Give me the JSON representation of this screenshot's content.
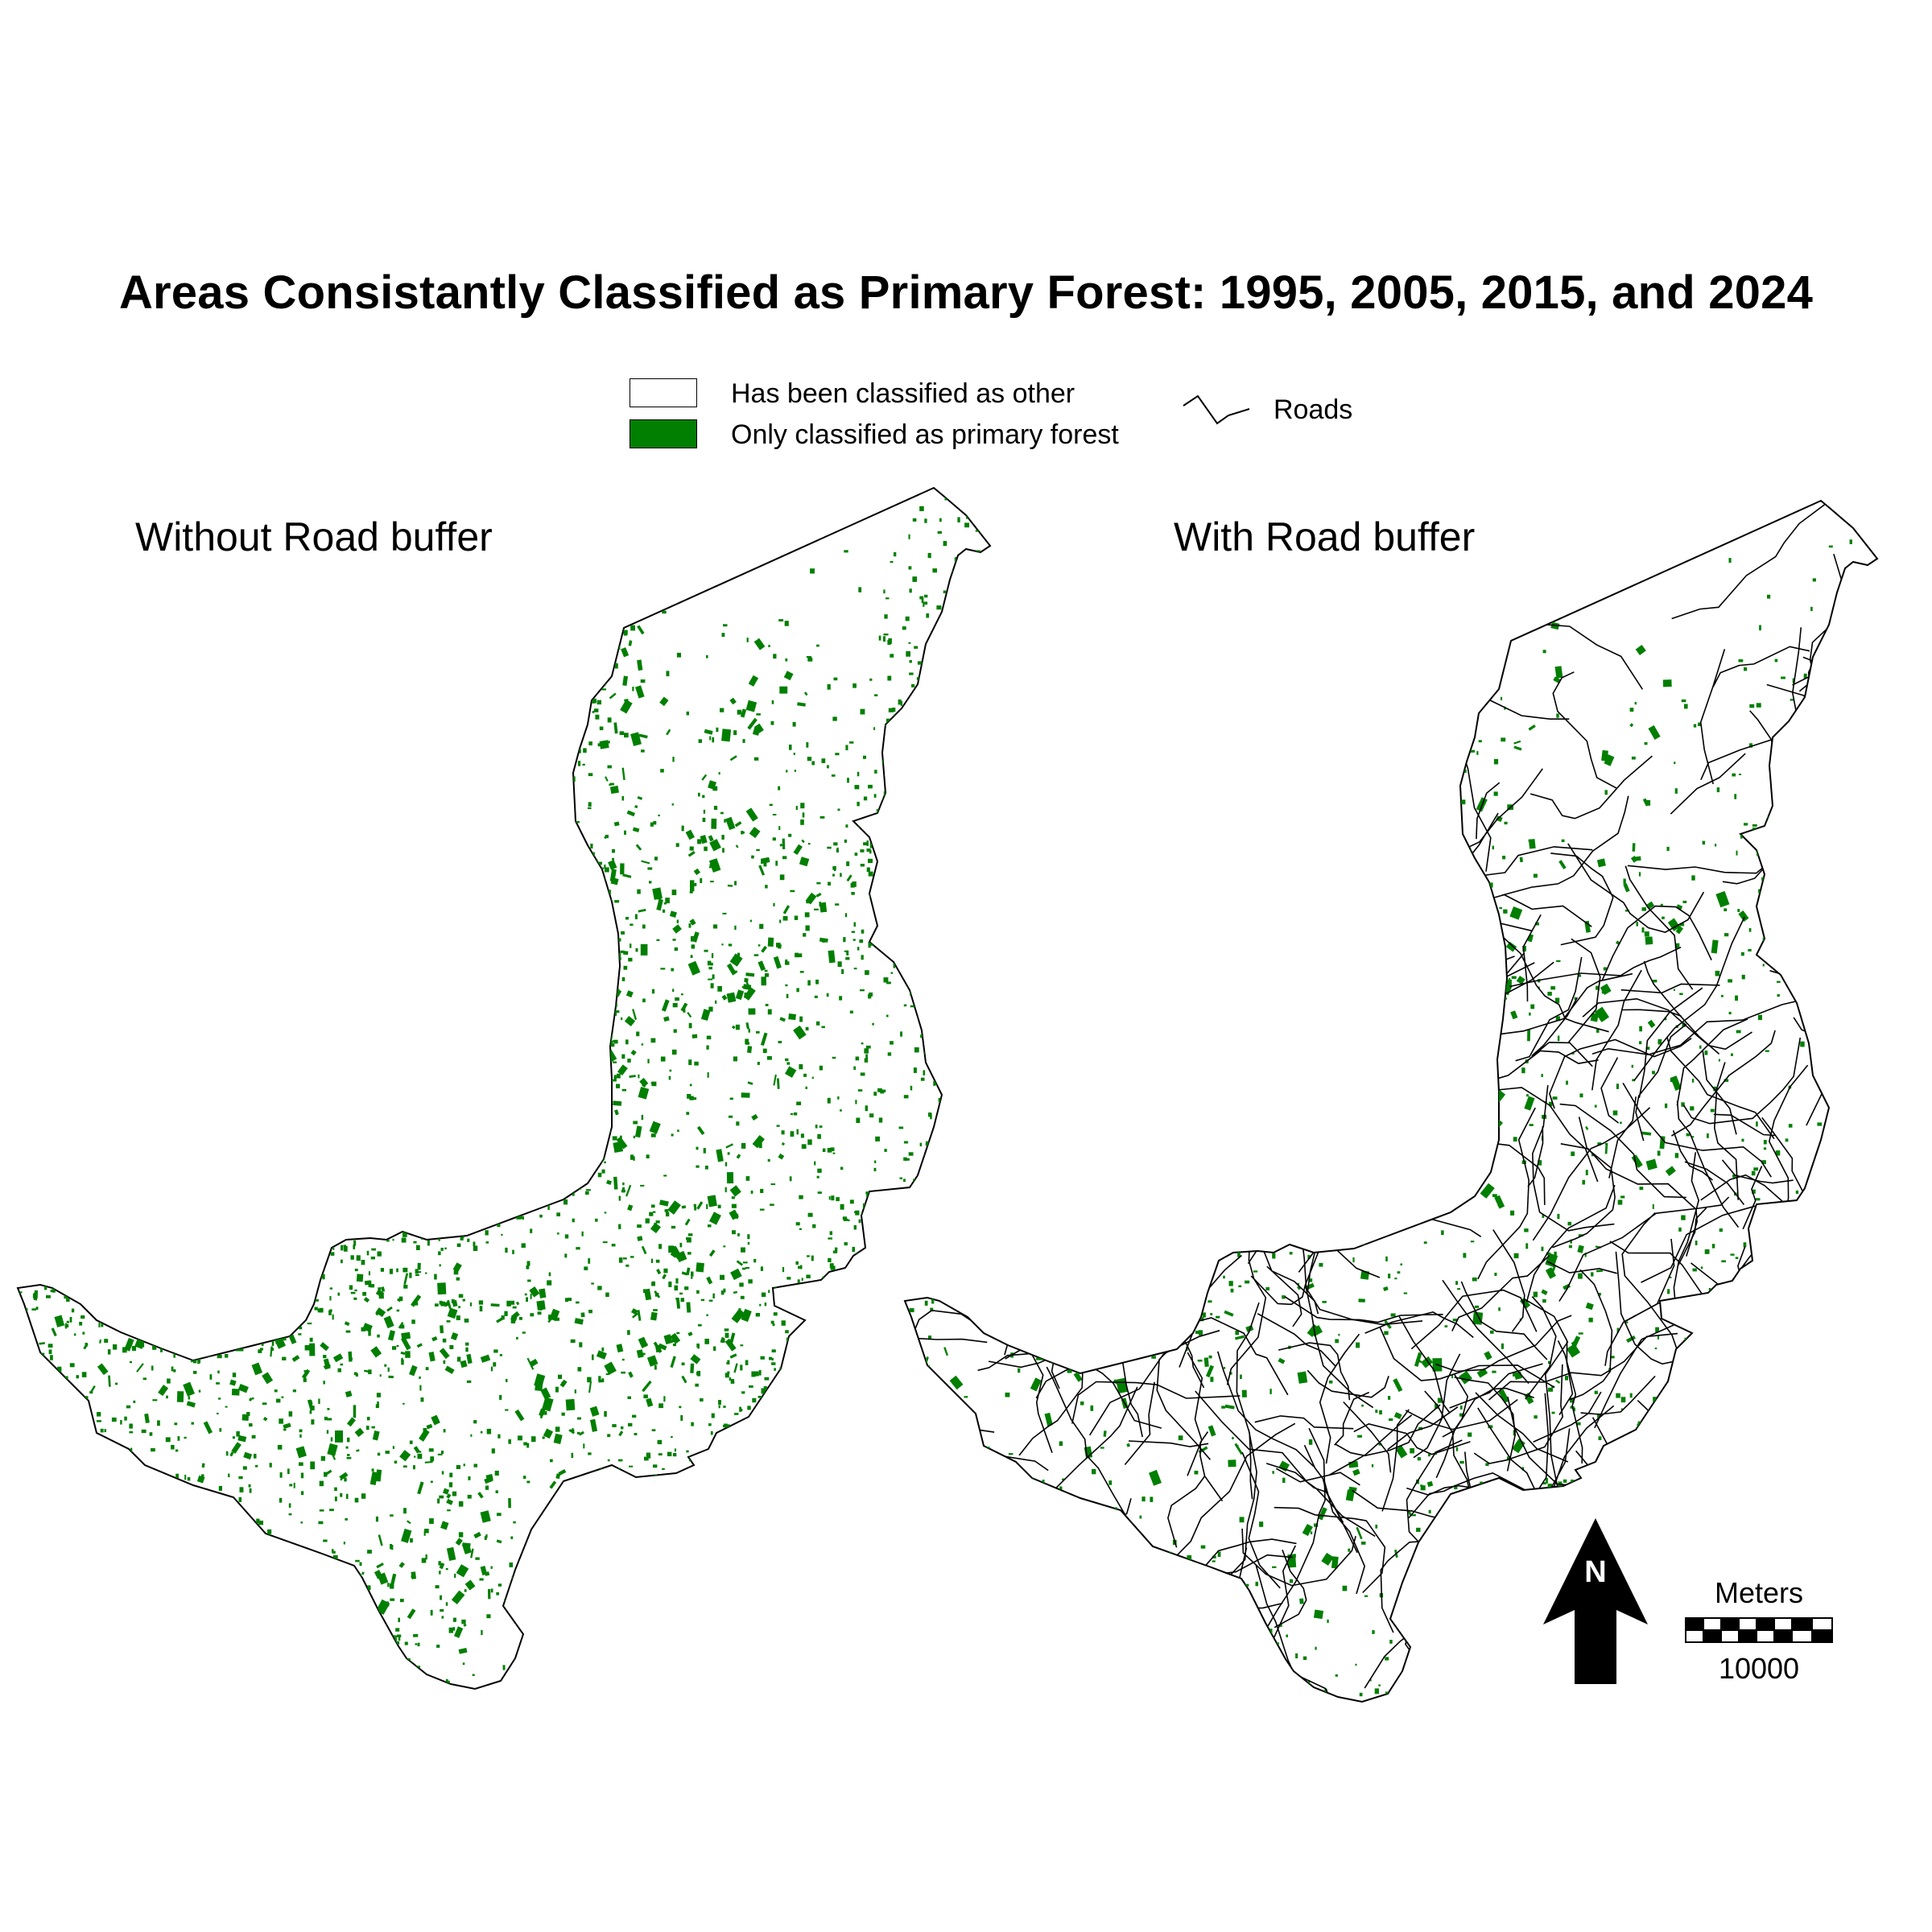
{
  "title": "Areas Consistantly Classified as Primary Forest: 1995, 2005, 2015, and 2024",
  "legend": {
    "items": [
      {
        "label": "Has been classified as other",
        "color": "#ffffff"
      },
      {
        "label": "Only classified as primary forest",
        "color": "#007f00"
      }
    ],
    "roads_label": "Roads"
  },
  "panels": {
    "left_title": "Without Road buffer",
    "right_title": "With Road buffer"
  },
  "north_arrow": {
    "label": "N"
  },
  "scale_bar": {
    "unit": "Meters",
    "value": "10000"
  },
  "colors": {
    "forest": "#007f00",
    "outline": "#000000",
    "background": "#ffffff"
  }
}
